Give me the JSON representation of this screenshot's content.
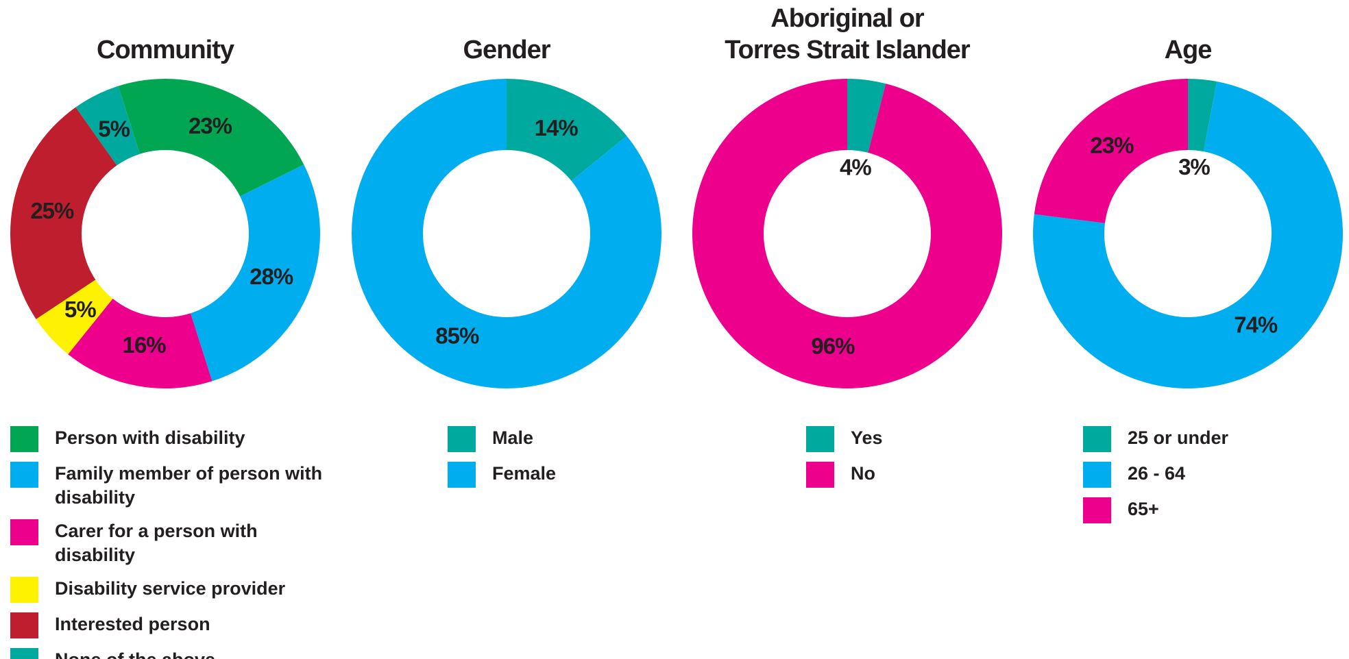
{
  "chart_data": [
    {
      "type": "pie",
      "title": "Community",
      "categories": [
        "Person with disability",
        "Family member of person with disability",
        "Carer for a person with disability",
        "Disability service provider",
        "Interested person",
        "None of the above"
      ],
      "values": [
        23,
        28,
        16,
        5,
        25,
        5
      ],
      "value_labels": [
        "23%",
        "28%",
        "16%",
        "5%",
        "25%",
        "5%"
      ],
      "colors": [
        "#00a651",
        "#00aeef",
        "#ec008c",
        "#fff200",
        "#be1e2d",
        "#00a99d"
      ]
    },
    {
      "type": "pie",
      "title": "Gender",
      "categories": [
        "Male",
        "Female"
      ],
      "values": [
        14,
        85
      ],
      "value_labels": [
        "14%",
        "85%"
      ],
      "colors": [
        "#00a99d",
        "#00aeef"
      ]
    },
    {
      "type": "pie",
      "title": "Aboriginal or\nTorres Strait Islander",
      "categories": [
        "Yes",
        "No"
      ],
      "values": [
        4,
        96
      ],
      "value_labels": [
        "4%",
        "96%"
      ],
      "colors": [
        "#00a99d",
        "#ec008c"
      ]
    },
    {
      "type": "pie",
      "title": "Age",
      "categories": [
        "25 or under",
        "26 - 64",
        "65+"
      ],
      "values": [
        3,
        74,
        23
      ],
      "value_labels": [
        "3%",
        "74%",
        "23%"
      ],
      "colors": [
        "#00a99d",
        "#00aeef",
        "#ec008c"
      ]
    }
  ]
}
